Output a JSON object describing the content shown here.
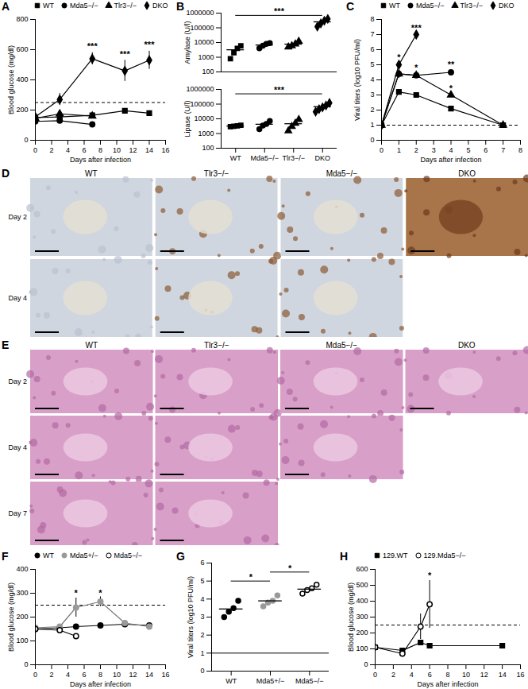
{
  "chart_data": [
    {
      "panel_label": "A",
      "type": "line",
      "x_label": "Days after infection",
      "y_label": "Blood glucose (mg/dl)",
      "xlim": [
        0,
        16
      ],
      "xticks": [
        0,
        2,
        4,
        6,
        8,
        10,
        12,
        14,
        16
      ],
      "ylim": [
        0,
        800
      ],
      "yticks": [
        0,
        200,
        400,
        600,
        800
      ],
      "reference_line": 250,
      "legend": "top",
      "series": [
        {
          "name": "WT",
          "marker": "square",
          "color": "#000000",
          "x": [
            0,
            3,
            7,
            11,
            14
          ],
          "values": [
            150,
            155,
            165,
            195,
            180
          ]
        },
        {
          "name": "Mda5−/−",
          "marker": "circle",
          "color": "#000000",
          "x": [
            0,
            3,
            7
          ],
          "values": [
            125,
            130,
            105
          ]
        },
        {
          "name": "Tlr3−/−",
          "marker": "triangle",
          "color": "#000000",
          "x": [
            0,
            3,
            7
          ],
          "values": [
            145,
            175,
            160
          ]
        },
        {
          "name": "DKO",
          "marker": "diamond",
          "color": "#000000",
          "x": [
            0,
            3,
            7,
            11,
            14
          ],
          "values": [
            155,
            270,
            540,
            460,
            530
          ],
          "errors": [
            10,
            40,
            40,
            70,
            60
          ]
        }
      ],
      "annotations": [
        {
          "x": 7,
          "y": 620,
          "text": "***"
        },
        {
          "x": 11,
          "y": 570,
          "text": "***"
        },
        {
          "x": 14,
          "y": 630,
          "text": "***"
        }
      ]
    },
    {
      "panel_label": "B",
      "type": "scatter",
      "y_label": "Amylase (U/l)",
      "log": "y",
      "tick_labels": "y",
      "ylim": [
        100,
        1000000
      ],
      "yticks": [
        100,
        1000,
        10000,
        100000,
        1000000
      ],
      "series": [
        {
          "name": "WT",
          "marker": "square",
          "color": "#000000",
          "values": [
            800,
            2000,
            4000,
            6000
          ],
          "mean": 3200
        },
        {
          "name": "Mda5−/−",
          "marker": "circle",
          "color": "#000000",
          "values": [
            4000,
            6000,
            8000,
            9000
          ],
          "mean": 6750
        },
        {
          "name": "Tlr3−/−",
          "marker": "triangle",
          "color": "#000000",
          "values": [
            5000,
            6000,
            8000,
            12000
          ],
          "mean": 7750
        },
        {
          "name": "DKO",
          "marker": "diamond",
          "color": "#000000",
          "values": [
            120000,
            200000,
            300000,
            400000
          ],
          "mean": 255000
        }
      ],
      "significance": [
        {
          "from": "WT",
          "to": "DKO",
          "y": 700000,
          "text": "***"
        }
      ]
    },
    {
      "type": "scatter",
      "y_label": "Lipase (U/l)",
      "log": "y",
      "ylim": [
        100,
        1000000
      ],
      "yticks": [
        100,
        1000,
        10000,
        100000,
        1000000
      ],
      "series": [
        {
          "name": "WT",
          "marker": "square",
          "color": "#000000",
          "values": [
            2900,
            3100,
            3300,
            3600
          ],
          "mean": 3225
        },
        {
          "name": "Mda5−/−",
          "marker": "circle",
          "color": "#000000",
          "values": [
            2000,
            3500,
            4500,
            7000
          ],
          "mean": 4250
        },
        {
          "name": "Tlr3−/−",
          "marker": "triangle",
          "color": "#000000",
          "values": [
            1500,
            3000,
            5000,
            9000
          ],
          "mean": 4625
        },
        {
          "name": "DKO",
          "marker": "diamond",
          "color": "#000000",
          "values": [
            30000,
            45000,
            60000,
            80000,
            120000
          ],
          "mean": 67000
        }
      ],
      "significance": [
        {
          "from": "WT",
          "to": "DKO",
          "y": 500000,
          "text": "***"
        }
      ]
    },
    {
      "panel_label": "C",
      "type": "line",
      "x_label": "Days after infection",
      "y_label": "Viral titers (log10 PFU/ml)",
      "xlim": [
        0,
        8
      ],
      "xticks": [
        0,
        1,
        2,
        3,
        4,
        5,
        6,
        7,
        8
      ],
      "ylim": [
        0,
        8
      ],
      "yticks": [
        0,
        1,
        2,
        3,
        4,
        5,
        6,
        7,
        8
      ],
      "reference_line": 1,
      "legend": "top",
      "series": [
        {
          "name": "WT",
          "marker": "square",
          "color": "#000000",
          "x": [
            0,
            1,
            2,
            4,
            7
          ],
          "values": [
            1,
            3.2,
            3.0,
            2.1,
            1
          ]
        },
        {
          "name": "Mda5−/−",
          "marker": "circle",
          "color": "#000000",
          "x": [
            0,
            1,
            2,
            4
          ],
          "values": [
            1,
            4.4,
            4.3,
            4.5
          ]
        },
        {
          "name": "Tlr3−/−",
          "marker": "triangle",
          "color": "#000000",
          "x": [
            0,
            1,
            2,
            4,
            7
          ],
          "values": [
            1,
            4.4,
            4.3,
            3.0,
            1
          ],
          "errors": [
            0,
            0.3,
            0,
            0,
            0
          ]
        },
        {
          "name": "DKO",
          "marker": "diamond",
          "color": "#000000",
          "x": [
            0,
            1,
            2
          ],
          "values": [
            1,
            5.0,
            7.0
          ]
        }
      ],
      "annotations": [
        {
          "x": 1,
          "y": 5.5,
          "text": "*"
        },
        {
          "x": 2,
          "y": 4.8,
          "text": "*"
        },
        {
          "x": 2,
          "y": 7.4,
          "text": "***"
        },
        {
          "x": 4,
          "y": 5.0,
          "text": "**"
        },
        {
          "x": 4,
          "y": 3.4,
          "text": "*"
        }
      ]
    },
    {
      "panel_label": "F",
      "type": "line",
      "x_label": "Days after infection",
      "y_label": "Blood glucose (mg/dl)",
      "xlim": [
        0,
        16
      ],
      "xticks": [
        0,
        2,
        4,
        6,
        8,
        10,
        12,
        14,
        16
      ],
      "ylim": [
        0,
        400
      ],
      "yticks": [
        0,
        100,
        200,
        300,
        400
      ],
      "reference_line": 250,
      "legend": "top",
      "series": [
        {
          "name": "WT",
          "marker": "circle",
          "color": "#000000",
          "x": [
            0,
            3,
            5,
            8,
            11,
            14
          ],
          "values": [
            150,
            155,
            160,
            165,
            170,
            165
          ]
        },
        {
          "name": "Mda5+/−",
          "marker": "circle",
          "color": "#999999",
          "x": [
            0,
            3,
            5,
            8,
            11,
            14
          ],
          "values": [
            155,
            160,
            240,
            265,
            175,
            160
          ],
          "errors": [
            0,
            0,
            40,
            20,
            0,
            0
          ]
        },
        {
          "name": "Mda5−/−",
          "marker": "circle-open",
          "color": "#000000",
          "x": [
            0,
            3,
            5
          ],
          "values": [
            150,
            145,
            120
          ]
        }
      ],
      "annotations": [
        {
          "x": 5,
          "y": 300,
          "text": "*"
        },
        {
          "x": 8,
          "y": 300,
          "text": "*"
        }
      ]
    },
    {
      "panel_label": "G",
      "type": "scatter",
      "y_label": "Viral titers (log10 PFU/ml)",
      "ylim": [
        0,
        6
      ],
      "yticks": [
        0,
        1,
        2,
        3,
        4,
        5,
        6
      ],
      "reference_line": 1,
      "series": [
        {
          "name": "WT",
          "marker": "circle",
          "color": "#000000",
          "values": [
            3.0,
            3.3,
            3.5,
            3.9
          ],
          "mean": 3.45
        },
        {
          "name": "Mda5+/−",
          "marker": "circle",
          "color": "#999999",
          "values": [
            3.6,
            3.8,
            3.9,
            4.2
          ],
          "mean": 3.9
        },
        {
          "name": "Mda5−/−",
          "marker": "circle-open",
          "color": "#000000",
          "values": [
            4.3,
            4.5,
            4.6,
            4.8
          ],
          "mean": 4.55
        }
      ],
      "significance": [
        {
          "from": "WT",
          "to": "Mda5+/−",
          "y": 5.0,
          "text": "*"
        },
        {
          "from": "Mda5+/−",
          "to": "Mda5−/−",
          "y": 5.5,
          "text": "*"
        }
      ]
    },
    {
      "panel_label": "H",
      "type": "line",
      "x_label": "Days after infection",
      "y_label": "Blood glucose (mg/dl)",
      "xlim": [
        0,
        16
      ],
      "xticks": [
        0,
        2,
        4,
        6,
        8,
        10,
        12,
        14,
        16
      ],
      "ylim": [
        0,
        600
      ],
      "yticks": [
        0,
        100,
        200,
        300,
        400,
        500,
        600
      ],
      "reference_line": 250,
      "legend": "top",
      "series": [
        {
          "name": "129.WT",
          "marker": "square",
          "color": "#000000",
          "x": [
            0,
            3,
            5,
            6,
            14
          ],
          "values": [
            110,
            90,
            140,
            120,
            120
          ]
        },
        {
          "name": "129.Mda5−/−",
          "marker": "circle-open",
          "color": "#000000",
          "x": [
            0,
            3,
            5,
            6
          ],
          "values": [
            110,
            70,
            240,
            380
          ],
          "errors": [
            0,
            0,
            80,
            150
          ]
        }
      ],
      "annotations": [
        {
          "x": 6,
          "y": 560,
          "text": "*"
        }
      ]
    }
  ],
  "images": [
    {
      "panel_label": "D",
      "columns": [
        "WT",
        "Tlr3−/−",
        "Mda5−/−",
        "DKO"
      ],
      "rows": [
        {
          "label": "Day 2",
          "columns": [
            "WT",
            "Tlr3−/−",
            "Mda5−/−",
            "DKO"
          ]
        },
        {
          "label": "Day 4",
          "columns": [
            "WT",
            "Tlr3−/−",
            "Mda5−/−"
          ]
        }
      ]
    },
    {
      "panel_label": "E",
      "columns": [
        "WT",
        "Tlr3−/−",
        "Mda5−/−",
        "DKO"
      ],
      "rows": [
        {
          "label": "Day 2",
          "columns": [
            "WT",
            "Tlr3−/−",
            "Mda5−/−",
            "DKO"
          ]
        },
        {
          "label": "Day 4",
          "columns": [
            "WT",
            "Tlr3−/−",
            "Mda5−/−"
          ]
        },
        {
          "label": "Day 7",
          "columns": [
            "WT",
            "Tlr3−/−"
          ]
        }
      ]
    }
  ]
}
